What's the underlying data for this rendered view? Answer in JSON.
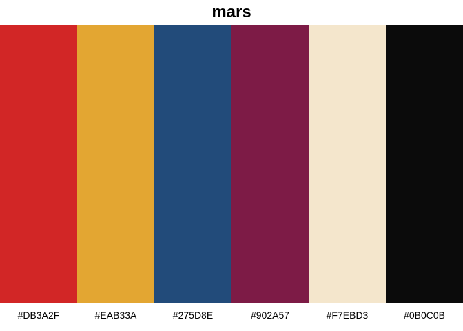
{
  "title": "mars",
  "colors": [
    {
      "hex": "#DB3A2F",
      "label": "#DB3A2F",
      "display": "#D22626"
    },
    {
      "hex": "#EAB33A",
      "label": "#EAB33A",
      "display": "#E3A632"
    },
    {
      "hex": "#275D8E",
      "label": "#275D8E",
      "display": "#224B7A"
    },
    {
      "hex": "#902A57",
      "label": "#902A57",
      "display": "#7D1B46"
    },
    {
      "hex": "#F7EBD3",
      "label": "#F7EBD3",
      "display": "#F4E6CC"
    },
    {
      "hex": "#0B0C0B",
      "label": "#0B0C0B",
      "display": "#0B0B0B"
    }
  ]
}
